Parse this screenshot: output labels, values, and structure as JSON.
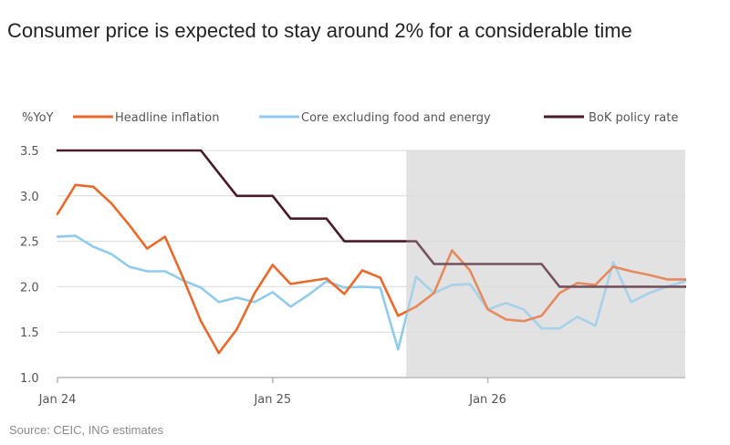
{
  "title": "Consumer price is expected to stay around 2% for a considerable time",
  "source": "Source: CEIC, ING estimates",
  "chart_data": {
    "type": "line",
    "title": "Consumer price is expected to stay around 2% for a considerable time",
    "ylabel": "%YoY",
    "xlabel": "",
    "ylim": [
      1.0,
      3.5
    ],
    "yticks": [
      "1.0",
      "1.5",
      "2.0",
      "2.5",
      "3.0",
      "3.5"
    ],
    "ytick_values": [
      1.0,
      1.5,
      2.0,
      2.5,
      3.0,
      3.5
    ],
    "xticks": [
      {
        "label": "Jan 24",
        "index": 0
      },
      {
        "label": "Jan 25",
        "index": 12
      },
      {
        "label": "Jan 26",
        "index": 24
      }
    ],
    "x_start": "Jan 24",
    "n_months": 36,
    "grid": true,
    "legend": "top",
    "forecast_shading": {
      "from_index": 19.5,
      "to_index": 35,
      "color": "#e2e2e2"
    },
    "series": [
      {
        "name": "Headline inflation",
        "color": "#e8692a",
        "values": [
          2.8,
          3.12,
          3.1,
          2.92,
          2.68,
          2.42,
          2.55,
          2.1,
          1.62,
          1.27,
          1.53,
          1.93,
          2.24,
          2.03,
          2.06,
          2.09,
          1.92,
          2.18,
          2.1,
          1.68,
          1.78,
          1.93,
          2.4,
          2.18,
          1.75,
          1.64,
          1.62,
          1.68,
          1.93,
          2.04,
          2.02,
          2.22,
          2.17,
          2.13,
          2.08,
          2.08
        ]
      },
      {
        "name": "Core excluding  food and energy",
        "color": "#8fcbed",
        "values": [
          2.55,
          2.56,
          2.44,
          2.36,
          2.22,
          2.17,
          2.17,
          2.07,
          1.99,
          1.83,
          1.88,
          1.83,
          1.94,
          1.78,
          1.91,
          2.06,
          1.99,
          2.0,
          1.99,
          1.31,
          2.11,
          1.93,
          2.02,
          2.03,
          1.75,
          1.82,
          1.75,
          1.54,
          1.54,
          1.67,
          1.57,
          2.27,
          1.83,
          1.93,
          2.0,
          2.06
        ]
      },
      {
        "name": "BoK policy rate",
        "color": "#4a1a2c",
        "values": [
          3.5,
          3.5,
          3.5,
          3.5,
          3.5,
          3.5,
          3.5,
          3.5,
          3.5,
          3.25,
          3.0,
          3.0,
          3.0,
          2.75,
          2.75,
          2.75,
          2.5,
          2.5,
          2.5,
          2.5,
          2.5,
          2.25,
          2.25,
          2.25,
          2.25,
          2.25,
          2.25,
          2.25,
          2.0,
          2.0,
          2.0,
          2.0,
          2.0,
          2.0,
          2.0,
          2.0
        ]
      }
    ]
  }
}
